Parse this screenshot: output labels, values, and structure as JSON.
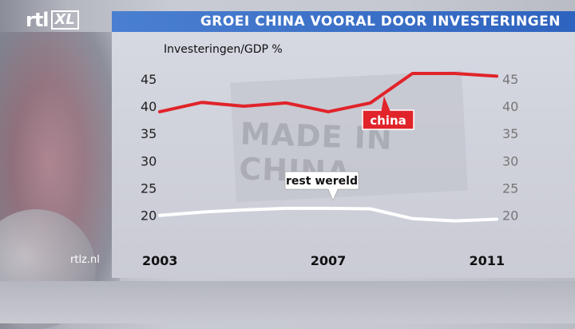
{
  "header": {
    "logo_text": "rtl",
    "logo_badge": "XL",
    "title": "GROEI CHINA VOORAL DOOR INVESTERINGEN"
  },
  "footer": {
    "website": "rtlz.nl"
  },
  "background_text": {
    "line1": "MADE IN",
    "line2": "CHINA"
  },
  "colors": {
    "china": "#e0242a",
    "rest_wereld": "#ffffff",
    "title_bar": "#3a70c8"
  },
  "chart_data": {
    "type": "line",
    "title": "GROEI CHINA VOORAL DOOR INVESTERINGEN",
    "ylabel": "Investeringen/GDP %",
    "xlabel": "",
    "x": [
      2003,
      2004,
      2005,
      2006,
      2007,
      2008,
      2009,
      2010,
      2011
    ],
    "x_ticks": [
      "2003",
      "2007",
      "2011"
    ],
    "y_ticks": [
      "20",
      "25",
      "30",
      "35",
      "40",
      "45"
    ],
    "ylim": [
      18.5,
      46
    ],
    "grid": false,
    "series": [
      {
        "name": "china",
        "values": [
          39.0,
          40.7,
          40.0,
          40.6,
          39.0,
          40.6,
          46.0,
          46.0,
          45.5
        ]
      },
      {
        "name": "rest wereld",
        "values": [
          20.0,
          20.6,
          21.0,
          21.3,
          21.3,
          21.2,
          19.4,
          19.0,
          19.3
        ]
      }
    ]
  }
}
